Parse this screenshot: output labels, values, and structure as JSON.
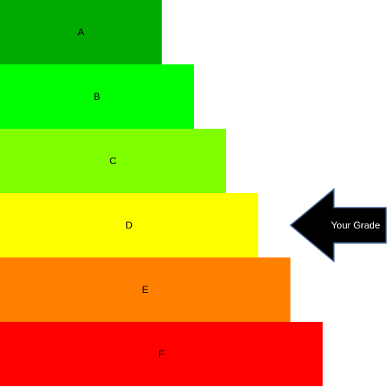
{
  "grades": [
    {
      "label": "A",
      "color": "#00aa00"
    },
    {
      "label": "B",
      "color": "#00ff00"
    },
    {
      "label": "C",
      "color": "#80ff00"
    },
    {
      "label": "D",
      "color": "#ffff00"
    },
    {
      "label": "E",
      "color": "#ff8000"
    },
    {
      "label": "F",
      "color": "#ff0000"
    }
  ],
  "indicator": {
    "label": "Your Grade",
    "selected_grade": "D",
    "fill_color": "#000000",
    "outline_color": "#4a6a9a",
    "text_color": "#ffffff",
    "icon": "left-arrow-icon"
  }
}
